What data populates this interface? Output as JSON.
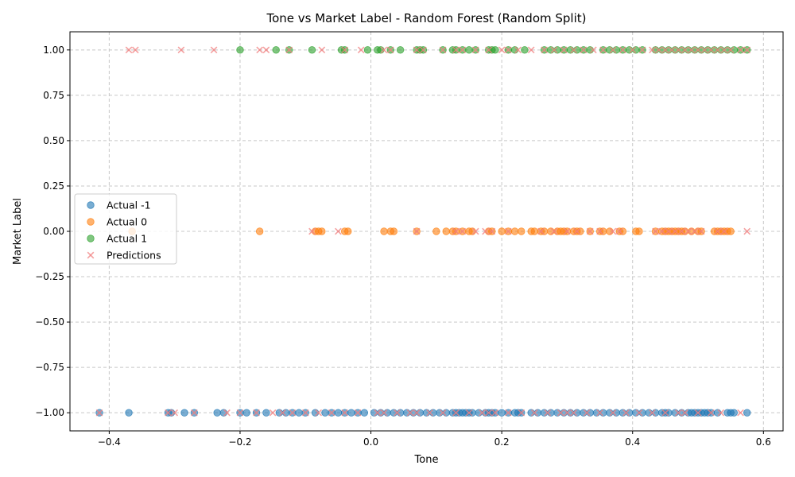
{
  "chart_data": {
    "type": "scatter",
    "title": "Tone vs Market Label - Random Forest (Random Split)",
    "xlabel": "Tone",
    "ylabel": "Market Label",
    "xlim": [
      -0.46,
      0.63
    ],
    "ylim": [
      -1.1,
      1.1
    ],
    "xticks": [
      -0.4,
      -0.2,
      0.0,
      0.2,
      0.4,
      0.6
    ],
    "xtick_labels": [
      "−0.4",
      "−0.2",
      "0.0",
      "0.2",
      "0.4",
      "0.6"
    ],
    "yticks": [
      -1.0,
      -0.75,
      -0.5,
      -0.25,
      0.0,
      0.25,
      0.5,
      0.75,
      1.0
    ],
    "ytick_labels": [
      "−1.00",
      "−0.75",
      "−0.50",
      "−0.25",
      "0.00",
      "0.25",
      "0.50",
      "0.75",
      "1.00"
    ],
    "grid": true,
    "legend_position": "center-left",
    "series": [
      {
        "name": "Actual -1",
        "marker": "circle",
        "color": "#1f77b4",
        "y_value": -1,
        "x": [
          -0.415,
          -0.37,
          -0.31,
          -0.305,
          -0.285,
          -0.27,
          -0.235,
          -0.225,
          -0.2,
          -0.19,
          -0.175,
          -0.16,
          -0.14,
          -0.13,
          -0.12,
          -0.11,
          -0.1,
          -0.085,
          -0.07,
          -0.06,
          -0.05,
          -0.04,
          -0.03,
          -0.02,
          -0.01,
          0.005,
          0.015,
          0.025,
          0.035,
          0.045,
          0.055,
          0.065,
          0.075,
          0.085,
          0.095,
          0.105,
          0.115,
          0.125,
          0.13,
          0.135,
          0.14,
          0.145,
          0.15,
          0.155,
          0.165,
          0.175,
          0.18,
          0.185,
          0.19,
          0.2,
          0.21,
          0.22,
          0.225,
          0.23,
          0.245,
          0.255,
          0.265,
          0.275,
          0.285,
          0.295,
          0.305,
          0.315,
          0.325,
          0.335,
          0.345,
          0.355,
          0.365,
          0.375,
          0.385,
          0.395,
          0.405,
          0.415,
          0.425,
          0.435,
          0.445,
          0.45,
          0.455,
          0.465,
          0.475,
          0.485,
          0.49,
          0.495,
          0.5,
          0.505,
          0.51,
          0.515,
          0.52,
          0.53,
          0.545,
          0.55,
          0.555,
          0.575
        ]
      },
      {
        "name": "Actual 0",
        "marker": "circle",
        "color": "#ff7f0e",
        "y_value": 0,
        "x": [
          -0.365,
          -0.17,
          -0.085,
          -0.08,
          -0.075,
          -0.04,
          -0.035,
          0.02,
          0.03,
          0.035,
          0.07,
          0.1,
          0.115,
          0.125,
          0.13,
          0.14,
          0.15,
          0.155,
          0.18,
          0.185,
          0.2,
          0.21,
          0.22,
          0.23,
          0.245,
          0.25,
          0.26,
          0.265,
          0.275,
          0.285,
          0.29,
          0.295,
          0.3,
          0.31,
          0.315,
          0.32,
          0.335,
          0.35,
          0.355,
          0.365,
          0.38,
          0.385,
          0.405,
          0.41,
          0.435,
          0.445,
          0.45,
          0.455,
          0.46,
          0.465,
          0.47,
          0.475,
          0.48,
          0.49,
          0.5,
          0.505,
          0.525,
          0.53,
          0.535,
          0.54,
          0.545,
          0.55
        ]
      },
      {
        "name": "Actual 1",
        "marker": "circle",
        "color": "#2ca02c",
        "y_value": 1,
        "x": [
          -0.2,
          -0.145,
          -0.125,
          -0.09,
          -0.045,
          -0.04,
          -0.005,
          0.01,
          0.015,
          0.03,
          0.045,
          0.07,
          0.075,
          0.08,
          0.11,
          0.125,
          0.13,
          0.14,
          0.15,
          0.16,
          0.18,
          0.185,
          0.19,
          0.21,
          0.22,
          0.235,
          0.265,
          0.275,
          0.285,
          0.295,
          0.305,
          0.315,
          0.325,
          0.335,
          0.355,
          0.365,
          0.375,
          0.385,
          0.395,
          0.405,
          0.415,
          0.435,
          0.445,
          0.455,
          0.465,
          0.475,
          0.485,
          0.495,
          0.505,
          0.515,
          0.525,
          0.535,
          0.545,
          0.555,
          0.565,
          0.575
        ]
      },
      {
        "name": "Predictions",
        "marker": "x",
        "color": "#f08080",
        "points": [
          {
            "x": -0.415,
            "y": -1
          },
          {
            "x": -0.31,
            "y": -1
          },
          {
            "x": -0.3,
            "y": -1
          },
          {
            "x": -0.27,
            "y": -1
          },
          {
            "x": -0.22,
            "y": -1
          },
          {
            "x": -0.2,
            "y": -1
          },
          {
            "x": -0.175,
            "y": -1
          },
          {
            "x": -0.15,
            "y": -1
          },
          {
            "x": -0.135,
            "y": -1
          },
          {
            "x": -0.12,
            "y": -1
          },
          {
            "x": -0.1,
            "y": -1
          },
          {
            "x": -0.08,
            "y": -1
          },
          {
            "x": -0.06,
            "y": -1
          },
          {
            "x": -0.04,
            "y": -1
          },
          {
            "x": -0.02,
            "y": -1
          },
          {
            "x": 0.01,
            "y": -1
          },
          {
            "x": 0.02,
            "y": -1
          },
          {
            "x": 0.04,
            "y": -1
          },
          {
            "x": 0.06,
            "y": -1
          },
          {
            "x": 0.07,
            "y": -1
          },
          {
            "x": 0.09,
            "y": -1
          },
          {
            "x": 0.11,
            "y": -1
          },
          {
            "x": 0.13,
            "y": -1
          },
          {
            "x": 0.15,
            "y": -1
          },
          {
            "x": 0.17,
            "y": -1
          },
          {
            "x": 0.18,
            "y": -1
          },
          {
            "x": 0.19,
            "y": -1
          },
          {
            "x": 0.21,
            "y": -1
          },
          {
            "x": 0.23,
            "y": -1
          },
          {
            "x": 0.25,
            "y": -1
          },
          {
            "x": 0.27,
            "y": -1
          },
          {
            "x": 0.29,
            "y": -1
          },
          {
            "x": 0.3,
            "y": -1
          },
          {
            "x": 0.31,
            "y": -1
          },
          {
            "x": 0.33,
            "y": -1
          },
          {
            "x": 0.35,
            "y": -1
          },
          {
            "x": 0.37,
            "y": -1
          },
          {
            "x": 0.39,
            "y": -1
          },
          {
            "x": 0.41,
            "y": -1
          },
          {
            "x": 0.43,
            "y": -1
          },
          {
            "x": 0.45,
            "y": -1
          },
          {
            "x": 0.47,
            "y": -1
          },
          {
            "x": 0.48,
            "y": -1
          },
          {
            "x": 0.5,
            "y": -1
          },
          {
            "x": 0.52,
            "y": -1
          },
          {
            "x": 0.535,
            "y": -1
          },
          {
            "x": 0.565,
            "y": -1
          },
          {
            "x": -0.09,
            "y": 0
          },
          {
            "x": -0.05,
            "y": 0
          },
          {
            "x": 0.07,
            "y": 0
          },
          {
            "x": 0.13,
            "y": 0
          },
          {
            "x": 0.14,
            "y": 0
          },
          {
            "x": 0.16,
            "y": 0
          },
          {
            "x": 0.175,
            "y": 0
          },
          {
            "x": 0.185,
            "y": 0
          },
          {
            "x": 0.21,
            "y": 0
          },
          {
            "x": 0.26,
            "y": 0
          },
          {
            "x": 0.28,
            "y": 0
          },
          {
            "x": 0.3,
            "y": 0
          },
          {
            "x": 0.315,
            "y": 0
          },
          {
            "x": 0.335,
            "y": 0
          },
          {
            "x": 0.35,
            "y": 0
          },
          {
            "x": 0.37,
            "y": 0
          },
          {
            "x": 0.38,
            "y": 0
          },
          {
            "x": 0.435,
            "y": 0
          },
          {
            "x": 0.445,
            "y": 0
          },
          {
            "x": 0.455,
            "y": 0
          },
          {
            "x": 0.465,
            "y": 0
          },
          {
            "x": 0.475,
            "y": 0
          },
          {
            "x": 0.485,
            "y": 0
          },
          {
            "x": 0.495,
            "y": 0
          },
          {
            "x": 0.505,
            "y": 0
          },
          {
            "x": 0.53,
            "y": 0
          },
          {
            "x": 0.54,
            "y": 0
          },
          {
            "x": 0.575,
            "y": 0
          },
          {
            "x": -0.37,
            "y": 1
          },
          {
            "x": -0.36,
            "y": 1
          },
          {
            "x": -0.29,
            "y": 1
          },
          {
            "x": -0.24,
            "y": 1
          },
          {
            "x": -0.17,
            "y": 1
          },
          {
            "x": -0.16,
            "y": 1
          },
          {
            "x": -0.125,
            "y": 1
          },
          {
            "x": -0.075,
            "y": 1
          },
          {
            "x": -0.04,
            "y": 1
          },
          {
            "x": -0.015,
            "y": 1
          },
          {
            "x": 0.02,
            "y": 1
          },
          {
            "x": 0.03,
            "y": 1
          },
          {
            "x": 0.07,
            "y": 1
          },
          {
            "x": 0.08,
            "y": 1
          },
          {
            "x": 0.11,
            "y": 1
          },
          {
            "x": 0.13,
            "y": 1
          },
          {
            "x": 0.14,
            "y": 1
          },
          {
            "x": 0.16,
            "y": 1
          },
          {
            "x": 0.18,
            "y": 1
          },
          {
            "x": 0.2,
            "y": 1
          },
          {
            "x": 0.21,
            "y": 1
          },
          {
            "x": 0.225,
            "y": 1
          },
          {
            "x": 0.245,
            "y": 1
          },
          {
            "x": 0.265,
            "y": 1
          },
          {
            "x": 0.28,
            "y": 1
          },
          {
            "x": 0.295,
            "y": 1
          },
          {
            "x": 0.31,
            "y": 1
          },
          {
            "x": 0.325,
            "y": 1
          },
          {
            "x": 0.34,
            "y": 1
          },
          {
            "x": 0.355,
            "y": 1
          },
          {
            "x": 0.37,
            "y": 1
          },
          {
            "x": 0.385,
            "y": 1
          },
          {
            "x": 0.4,
            "y": 1
          },
          {
            "x": 0.415,
            "y": 1
          },
          {
            "x": 0.43,
            "y": 1
          },
          {
            "x": 0.44,
            "y": 1
          },
          {
            "x": 0.45,
            "y": 1
          },
          {
            "x": 0.46,
            "y": 1
          },
          {
            "x": 0.47,
            "y": 1
          },
          {
            "x": 0.48,
            "y": 1
          },
          {
            "x": 0.49,
            "y": 1
          },
          {
            "x": 0.5,
            "y": 1
          },
          {
            "x": 0.51,
            "y": 1
          },
          {
            "x": 0.52,
            "y": 1
          },
          {
            "x": 0.53,
            "y": 1
          },
          {
            "x": 0.54,
            "y": 1
          },
          {
            "x": 0.55,
            "y": 1
          },
          {
            "x": 0.565,
            "y": 1
          },
          {
            "x": 0.575,
            "y": 1
          }
        ]
      }
    ]
  }
}
